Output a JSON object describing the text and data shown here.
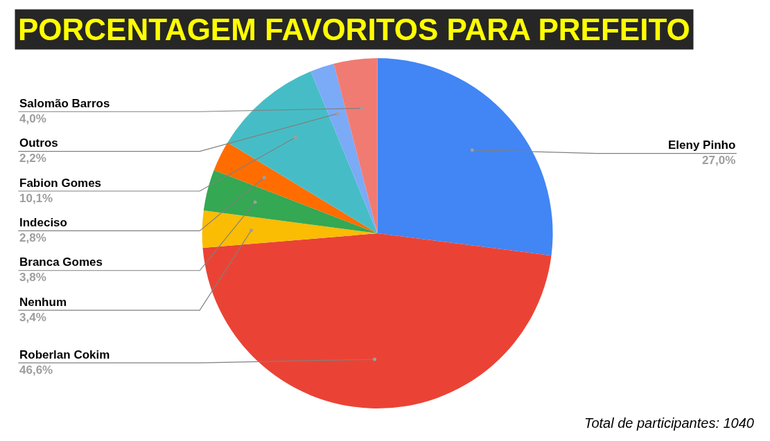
{
  "chart_data": {
    "type": "pie",
    "title": "PORCENTAGEM FAVORITOS PARA PREFEITO",
    "categories": [
      "Eleny Pinho",
      "Roberlan Cokim",
      "Nenhum",
      "Branca Gomes",
      "Indeciso",
      "Fabion Gomes",
      "Outros",
      "Salomão Barros"
    ],
    "values": [
      27.0,
      46.6,
      3.4,
      3.8,
      2.8,
      10.1,
      2.2,
      4.0
    ],
    "value_labels": [
      "27,0%",
      "46,6%",
      "3,4%",
      "3,8%",
      "2,8%",
      "10,1%",
      "2,2%",
      "4,0%"
    ],
    "colors": [
      "#4285f4",
      "#ea4335",
      "#fbbc04",
      "#34a853",
      "#ff6d01",
      "#46bdc6",
      "#7baaf7",
      "#f07b72"
    ],
    "annotations": [
      "Total de participantes: 1040"
    ],
    "legend": false
  }
}
